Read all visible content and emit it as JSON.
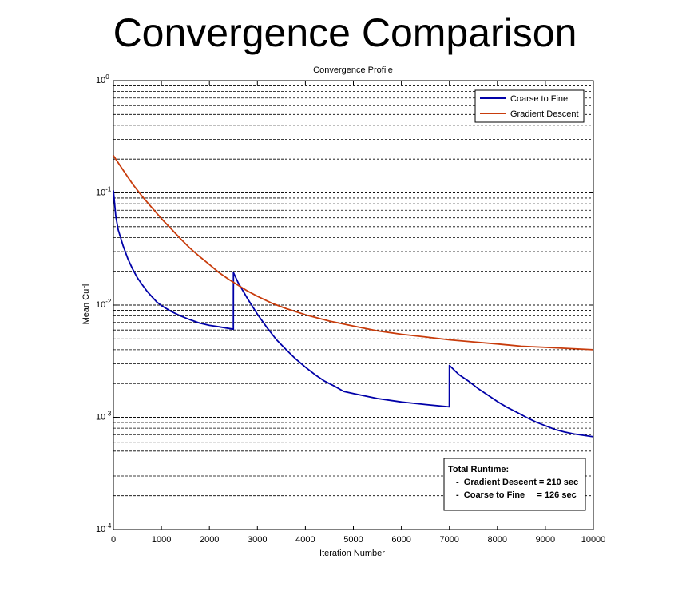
{
  "chart_data": {
    "type": "line",
    "title": "Convergence Comparison",
    "subtitle": "Convergence Profile",
    "xlabel": "Iteration Number",
    "ylabel": "Mean Curl",
    "xlim": [
      0,
      10000
    ],
    "ylim": [
      0.0001,
      1
    ],
    "yscale": "log",
    "grid": "y-minor-dashed",
    "legend_position": "top-right",
    "x_ticks": [
      "0",
      "1000",
      "2000",
      "3000",
      "4000",
      "5000",
      "6000",
      "7000",
      "8000",
      "9000",
      "10000"
    ],
    "y_ticks": [
      {
        "base": "10",
        "exp": "-4",
        "value": 0.0001
      },
      {
        "base": "10",
        "exp": "-3",
        "value": 0.001
      },
      {
        "base": "10",
        "exp": "-2",
        "value": 0.01
      },
      {
        "base": "10",
        "exp": "-1",
        "value": 0.1
      },
      {
        "base": "10",
        "exp": "0",
        "value": 1
      }
    ],
    "series": [
      {
        "name": "Coarse to Fine",
        "color": "#0000a8",
        "points": [
          [
            0,
            0.105
          ],
          [
            50,
            0.062
          ],
          [
            100,
            0.047
          ],
          [
            200,
            0.034
          ],
          [
            300,
            0.026
          ],
          [
            400,
            0.021
          ],
          [
            500,
            0.0175
          ],
          [
            600,
            0.0152
          ],
          [
            700,
            0.0133
          ],
          [
            800,
            0.0119
          ],
          [
            900,
            0.0107
          ],
          [
            1000,
            0.0099
          ],
          [
            1200,
            0.0088
          ],
          [
            1400,
            0.008
          ],
          [
            1600,
            0.0074
          ],
          [
            1800,
            0.0069
          ],
          [
            2000,
            0.0066
          ],
          [
            2200,
            0.0064
          ],
          [
            2400,
            0.0062
          ],
          [
            2499,
            0.0061
          ],
          [
            2500,
            0.0195
          ],
          [
            2600,
            0.0158
          ],
          [
            2800,
            0.0113
          ],
          [
            3000,
            0.0083
          ],
          [
            3200,
            0.0063
          ],
          [
            3400,
            0.0049
          ],
          [
            3600,
            0.004
          ],
          [
            3800,
            0.0033
          ],
          [
            4000,
            0.0028
          ],
          [
            4200,
            0.0024
          ],
          [
            4400,
            0.0021
          ],
          [
            4600,
            0.0019
          ],
          [
            4800,
            0.0017
          ],
          [
            5000,
            0.00163
          ],
          [
            5500,
            0.00147
          ],
          [
            6000,
            0.00137
          ],
          [
            6500,
            0.0013
          ],
          [
            6999,
            0.00124
          ],
          [
            7000,
            0.0029
          ],
          [
            7200,
            0.0024
          ],
          [
            7400,
            0.0021
          ],
          [
            7600,
            0.0018
          ],
          [
            7800,
            0.00158
          ],
          [
            8000,
            0.00138
          ],
          [
            8200,
            0.00123
          ],
          [
            8400,
            0.00111
          ],
          [
            8600,
            0.001
          ],
          [
            8800,
            0.00091
          ],
          [
            9000,
            0.00084
          ],
          [
            9200,
            0.00078
          ],
          [
            9400,
            0.00074
          ],
          [
            9600,
            0.00071
          ],
          [
            9800,
            0.00069
          ],
          [
            10000,
            0.00067
          ]
        ]
      },
      {
        "name": "Gradient Descent",
        "color": "#c83c0c",
        "points": [
          [
            0,
            0.215
          ],
          [
            200,
            0.16
          ],
          [
            400,
            0.12
          ],
          [
            600,
            0.093
          ],
          [
            800,
            0.074
          ],
          [
            1000,
            0.059
          ],
          [
            1200,
            0.048
          ],
          [
            1400,
            0.039
          ],
          [
            1600,
            0.032
          ],
          [
            1800,
            0.027
          ],
          [
            2000,
            0.023
          ],
          [
            2200,
            0.0195
          ],
          [
            2400,
            0.017
          ],
          [
            2600,
            0.015
          ],
          [
            2800,
            0.0133
          ],
          [
            3000,
            0.012
          ],
          [
            3300,
            0.0104
          ],
          [
            3600,
            0.0093
          ],
          [
            4000,
            0.0082
          ],
          [
            4500,
            0.0072
          ],
          [
            5000,
            0.0065
          ],
          [
            5500,
            0.0059
          ],
          [
            6000,
            0.0055
          ],
          [
            6500,
            0.0052
          ],
          [
            7000,
            0.0049
          ],
          [
            7500,
            0.0047
          ],
          [
            8000,
            0.0045
          ],
          [
            8500,
            0.0043
          ],
          [
            9000,
            0.0042
          ],
          [
            9500,
            0.0041
          ],
          [
            10000,
            0.004
          ]
        ]
      }
    ],
    "annotation": {
      "heading": "Total Runtime:",
      "lines": [
        "-  Gradient Descent = 210 sec",
        "-  Coarse to Fine     = 126 sec"
      ]
    }
  }
}
